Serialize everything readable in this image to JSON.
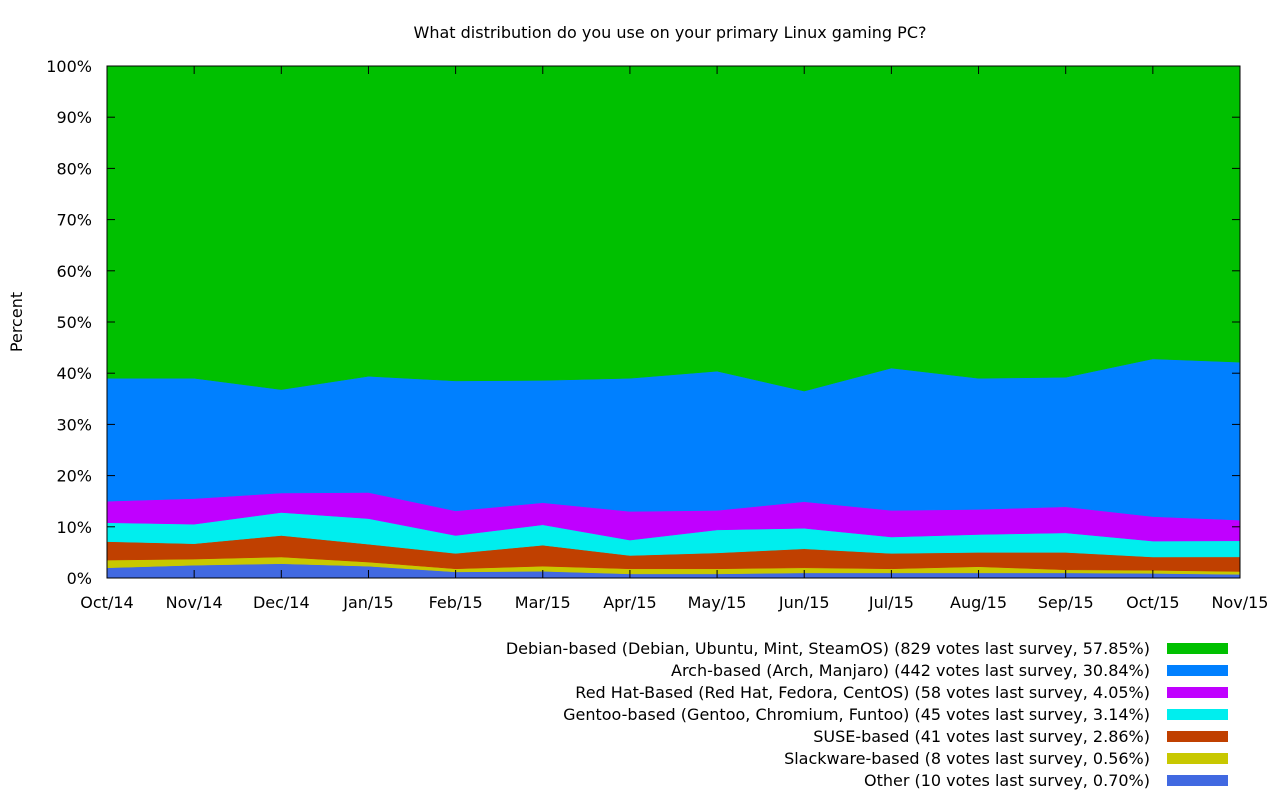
{
  "chart_data": {
    "type": "area",
    "title": "What distribution do you use on your primary Linux gaming PC?",
    "xlabel": "",
    "ylabel": "Percent",
    "ylim": [
      0,
      100
    ],
    "stacked": true,
    "grid": false,
    "legend_position": "bottom-right",
    "categories": [
      "Oct/14",
      "Nov/14",
      "Dec/14",
      "Jan/15",
      "Feb/15",
      "Mar/15",
      "Apr/15",
      "May/15",
      "Jun/15",
      "Jul/15",
      "Aug/15",
      "Sep/15",
      "Oct/15",
      "Nov/15"
    ],
    "yticks": [
      "0%",
      "10%",
      "20%",
      "30%",
      "40%",
      "50%",
      "60%",
      "70%",
      "80%",
      "90%",
      "100%"
    ],
    "series": [
      {
        "name": "Other (10 votes last survey, 0.70%)",
        "color": "#4169e1",
        "values": [
          2.0,
          2.5,
          2.8,
          2.3,
          1.2,
          1.3,
          0.8,
          0.8,
          1.0,
          1.0,
          1.0,
          1.0,
          0.9,
          0.7
        ]
      },
      {
        "name": "Slackware-based (8 votes last survey, 0.56%)",
        "color": "#c8c800",
        "values": [
          1.5,
          1.2,
          1.3,
          0.8,
          0.6,
          1.0,
          1.0,
          1.0,
          1.0,
          0.8,
          1.2,
          0.6,
          0.6,
          0.56
        ]
      },
      {
        "name": "SUSE-based (41 votes last survey, 2.86%)",
        "color": "#c04000",
        "values": [
          3.6,
          3.0,
          4.2,
          3.5,
          3.0,
          4.1,
          2.6,
          3.1,
          3.7,
          3.0,
          2.8,
          3.4,
          2.6,
          2.86
        ]
      },
      {
        "name": "Gentoo-based (Gentoo, Chromium, Funtoo) (45 votes last survey, 3.14%)",
        "color": "#00eeee",
        "values": [
          3.7,
          3.8,
          4.5,
          5.0,
          3.5,
          4.0,
          3.0,
          4.5,
          4.0,
          3.2,
          3.5,
          3.8,
          3.1,
          3.14
        ]
      },
      {
        "name": "Red Hat-Based (Red Hat, Fedora, CentOS) (58 votes last survey, 4.05%)",
        "color": "#c000ff",
        "values": [
          4.2,
          5.0,
          3.8,
          5.1,
          4.8,
          4.3,
          5.6,
          3.8,
          5.2,
          5.2,
          4.9,
          5.1,
          4.8,
          4.05
        ]
      },
      {
        "name": "Arch-based (Arch, Manjaro) (442 votes last survey, 30.84%)",
        "color": "#0080ff",
        "values": [
          24.0,
          23.5,
          20.2,
          22.7,
          25.4,
          23.9,
          26.0,
          27.2,
          21.6,
          27.8,
          25.6,
          25.3,
          30.8,
          30.84
        ]
      },
      {
        "name": "Debian-based (Debian, Ubuntu, Mint, SteamOS) (829 votes last survey, 57.85%)",
        "color": "#00c000",
        "values": [
          61.0,
          61.0,
          63.2,
          60.6,
          61.5,
          61.4,
          61.0,
          59.6,
          63.5,
          59.0,
          61.0,
          60.8,
          57.2,
          57.85
        ]
      }
    ]
  }
}
